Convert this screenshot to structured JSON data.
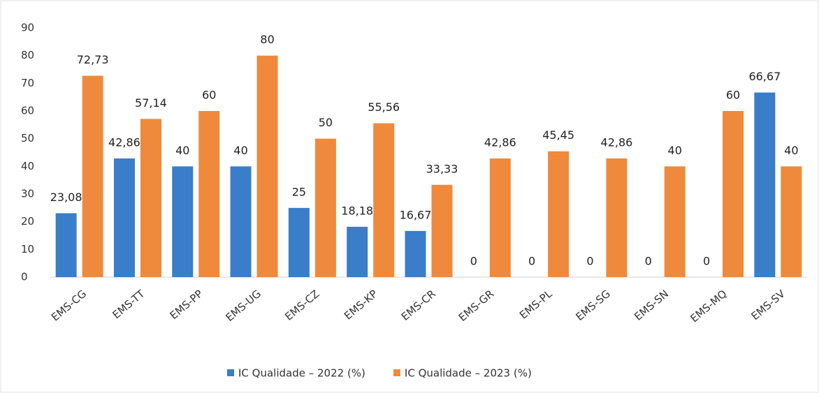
{
  "chart_data": {
    "type": "bar",
    "categories": [
      "EMS-CG",
      "EMS-TT",
      "EMS-PP",
      "EMS-UG",
      "EMS-CZ",
      "EMS-KP",
      "EMS-CR",
      "EMS-GR",
      "EMS-PL",
      "EMS-SG",
      "EMS-SN",
      "EMS-MQ",
      "EMS-SV"
    ],
    "series": [
      {
        "name": "IC Qualidade – 2022 (%)",
        "color": "#3a7dc9",
        "values": [
          23.08,
          42.86,
          40,
          40,
          25,
          18.18,
          16.67,
          0,
          0,
          0,
          0,
          0,
          66.67
        ],
        "value_labels": [
          "23,08",
          "42,86",
          "40",
          "40",
          "25",
          "18,18",
          "16,67",
          "0",
          "0",
          "0",
          "0",
          "0",
          "66,67"
        ]
      },
      {
        "name": "IC Qualidade – 2023 (%)",
        "color": "#ef8a3c",
        "values": [
          72.73,
          57.14,
          60,
          80,
          50,
          55.56,
          33.33,
          42.86,
          45.45,
          42.86,
          40,
          60,
          40
        ],
        "value_labels": [
          "72,73",
          "57,14",
          "60",
          "80",
          "50",
          "55,56",
          "33,33",
          "42,86",
          "45,45",
          "42,86",
          "40",
          "60",
          "40"
        ]
      }
    ],
    "ylim": [
      0,
      90
    ],
    "yticks": [
      0,
      10,
      20,
      30,
      40,
      50,
      60,
      70,
      80,
      90
    ],
    "grid": false,
    "legend": "bottom"
  }
}
